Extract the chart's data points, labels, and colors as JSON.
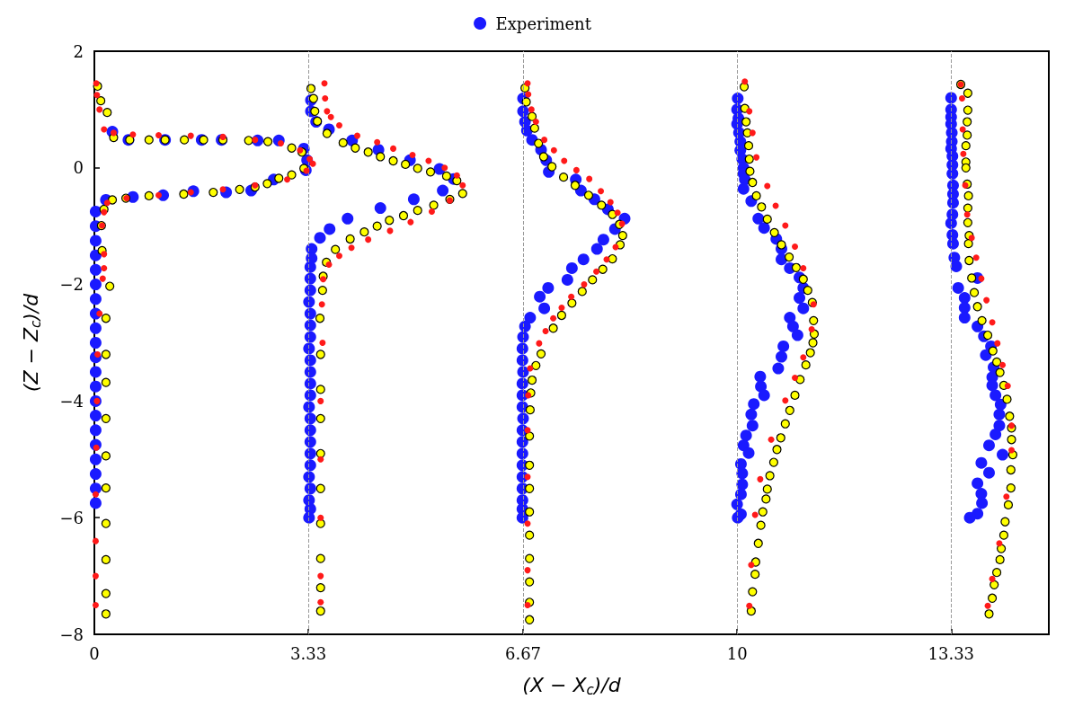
{
  "chart_data": {
    "type": "scatter",
    "xlabel": "(X − X$_{c}$)/d",
    "ylabel": "(Z − Z$_{c}$)/d",
    "xlim": [
      0,
      14.85
    ],
    "ylim": [
      -8,
      2
    ],
    "xticks": [
      0,
      3.33,
      6.67,
      10,
      13.33
    ],
    "yticks": [
      -8,
      -6,
      -4,
      -2,
      0,
      2
    ],
    "grid": false,
    "legend": "top",
    "marker": "circle",
    "ref_lines": [
      {
        "axis": "x",
        "value": 3.33,
        "color": "#999999",
        "line_style": "dashed"
      },
      {
        "axis": "x",
        "value": 6.67,
        "color": "#999999",
        "line_style": "dashed"
      },
      {
        "axis": "x",
        "value": 10,
        "color": "#999999",
        "line_style": "dashed"
      },
      {
        "axis": "x",
        "value": 13.33,
        "color": "#999999",
        "line_style": "dashed"
      }
    ],
    "series": [
      {
        "name": "Experiment",
        "color": "#1a1aff",
        "x": [
          0.28,
          0.53,
          1.1,
          1.67,
          1.98,
          2.54,
          2.87,
          3.26,
          3.31,
          3.29,
          2.79,
          2.44,
          2.05,
          1.54,
          1.07,
          0.6,
          0.18,
          0.02,
          0.02,
          0.02,
          0.02,
          0.02,
          0.02,
          0.02,
          0.02,
          0.02,
          0.02,
          0.02,
          0.02,
          0.02,
          0.02,
          0.02,
          0.02,
          0.02,
          0.02,
          0.02,
          0.02,
          0.02,
          3.37,
          3.37,
          3.45,
          3.65,
          4.01,
          4.42,
          4.91,
          5.37,
          5.59,
          5.42,
          4.97,
          4.45,
          3.94,
          3.66,
          3.51,
          3.38,
          3.38,
          3.36,
          3.36,
          3.36,
          3.34,
          3.36,
          3.36,
          3.36,
          3.34,
          3.36,
          3.36,
          3.36,
          3.36,
          3.34,
          3.36,
          3.36,
          3.36,
          3.36,
          3.36,
          3.34,
          3.36,
          3.34,
          3.36,
          3.34,
          6.67,
          6.67,
          6.7,
          6.73,
          6.81,
          6.95,
          7.03,
          7.07,
          7.49,
          7.57,
          7.78,
          7.99,
          8.25,
          8.1,
          7.92,
          7.82,
          7.61,
          7.43,
          7.36,
          7.06,
          6.93,
          7.0,
          6.78,
          6.7,
          6.67,
          6.66,
          6.66,
          6.67,
          6.66,
          6.66,
          6.66,
          6.67,
          6.66,
          6.66,
          6.66,
          6.66,
          6.66,
          6.66,
          6.66,
          6.66,
          6.66,
          10.01,
          10.0,
          10.02,
          10.0,
          10.03,
          10.05,
          10.05,
          10.08,
          10.1,
          10.1,
          10.12,
          10.1,
          10.22,
          10.33,
          10.42,
          10.61,
          10.69,
          10.69,
          10.82,
          10.97,
          11.03,
          10.97,
          11.03,
          10.82,
          10.87,
          10.94,
          10.72,
          10.69,
          10.64,
          10.36,
          10.37,
          10.42,
          10.26,
          10.22,
          10.24,
          10.14,
          10.1,
          10.18,
          10.06,
          10.08,
          10.08,
          10.06,
          10.0,
          10.06,
          10.01,
          13.33,
          13.33,
          13.33,
          13.33,
          13.34,
          13.34,
          13.33,
          13.35,
          13.35,
          13.35,
          13.36,
          13.36,
          13.36,
          13.35,
          13.33,
          13.35,
          13.36,
          13.38,
          13.41,
          13.74,
          13.44,
          13.54,
          13.54,
          13.54,
          13.74,
          13.84,
          13.95,
          13.87,
          13.99,
          13.97,
          13.97,
          14.02,
          14.1,
          14.08,
          14.08,
          14.02,
          13.92,
          14.13,
          13.8,
          13.92,
          13.74,
          13.8,
          13.81,
          13.74,
          13.62
        ],
        "values": [
          0.62,
          0.48,
          0.48,
          0.48,
          0.48,
          0.47,
          0.47,
          0.33,
          0.13,
          -0.04,
          -0.2,
          -0.39,
          -0.42,
          -0.4,
          -0.47,
          -0.5,
          -0.55,
          -0.75,
          -1.0,
          -1.25,
          -1.5,
          -1.75,
          -2.0,
          -2.25,
          -2.5,
          -2.75,
          -3.0,
          -3.25,
          -3.5,
          -3.75,
          -4.0,
          -4.25,
          -4.5,
          -4.75,
          -5.0,
          -5.25,
          -5.5,
          -5.75,
          1.16,
          0.97,
          0.79,
          0.66,
          0.47,
          0.31,
          0.13,
          -0.02,
          -0.19,
          -0.39,
          -0.54,
          -0.69,
          -0.87,
          -1.05,
          -1.2,
          -1.39,
          -1.55,
          -1.7,
          -1.9,
          -2.1,
          -2.3,
          -2.5,
          -2.7,
          -2.9,
          -3.1,
          -3.3,
          -3.5,
          -3.7,
          -3.9,
          -4.1,
          -4.3,
          -4.5,
          -4.7,
          -4.9,
          -5.1,
          -5.3,
          -5.5,
          -5.7,
          -5.85,
          -6.0,
          1.19,
          0.97,
          0.79,
          0.64,
          0.48,
          0.31,
          0.13,
          -0.07,
          -0.2,
          -0.39,
          -0.54,
          -0.71,
          -0.87,
          -1.05,
          -1.23,
          -1.39,
          -1.57,
          -1.72,
          -1.92,
          -2.06,
          -2.21,
          -2.41,
          -2.57,
          -2.72,
          -2.9,
          -3.1,
          -3.3,
          -3.5,
          -3.7,
          -3.9,
          -4.1,
          -4.3,
          -4.5,
          -4.7,
          -4.9,
          -5.1,
          -5.3,
          -5.5,
          -5.7,
          -5.85,
          -6.0,
          1.19,
          1.0,
          0.85,
          0.75,
          0.6,
          0.45,
          0.3,
          0.15,
          0.0,
          -0.1,
          -0.2,
          -0.36,
          -0.57,
          -0.87,
          -1.03,
          -1.22,
          -1.39,
          -1.57,
          -1.72,
          -1.88,
          -2.06,
          -2.23,
          -2.41,
          -2.57,
          -2.72,
          -2.87,
          -3.06,
          -3.24,
          -3.44,
          -3.58,
          -3.75,
          -3.9,
          -4.05,
          -4.23,
          -4.42,
          -4.59,
          -4.76,
          -4.89,
          -5.08,
          -5.24,
          -5.43,
          -5.6,
          -5.77,
          -5.94,
          -6.0,
          1.2,
          1.0,
          0.87,
          0.75,
          0.6,
          0.45,
          0.33,
          0.2,
          0.05,
          -0.1,
          -0.3,
          -0.45,
          -0.6,
          -0.8,
          -0.95,
          -1.15,
          -1.3,
          -1.54,
          -1.69,
          -1.89,
          -2.06,
          -2.23,
          -2.4,
          -2.57,
          -2.72,
          -2.89,
          -3.06,
          -3.21,
          -3.42,
          -3.59,
          -3.73,
          -3.9,
          -4.06,
          -4.23,
          -4.42,
          -4.57,
          -4.76,
          -4.92,
          -5.06,
          -5.23,
          -5.41,
          -5.59,
          -5.75,
          -5.93,
          -6.0
        ]
      },
      {
        "color": "#ffff00",
        "x": [
          0.05,
          0.1,
          0.2,
          0.3,
          0.55,
          0.85,
          1.1,
          1.4,
          1.7,
          2.0,
          2.4,
          2.7,
          3.07,
          3.23,
          3.26,
          3.07,
          2.87,
          2.69,
          2.5,
          2.26,
          1.85,
          1.39,
          0.85,
          0.49,
          0.28,
          0.15,
          0.11,
          0.12,
          0.24,
          0.18,
          0.18,
          0.18,
          0.18,
          0.18,
          0.18,
          0.18,
          0.18,
          0.18,
          0.18,
          3.37,
          3.41,
          3.43,
          3.47,
          3.62,
          3.87,
          4.06,
          4.26,
          4.45,
          4.65,
          4.84,
          5.03,
          5.23,
          5.48,
          5.64,
          5.73,
          5.53,
          5.28,
          5.03,
          4.81,
          4.59,
          4.4,
          4.2,
          3.98,
          3.75,
          3.61,
          3.56,
          3.55,
          3.51,
          3.52,
          3.52,
          3.52,
          3.52,
          3.52,
          3.52,
          3.52,
          3.52,
          3.52,
          6.7,
          6.72,
          6.81,
          6.85,
          6.91,
          6.99,
          7.12,
          7.3,
          7.48,
          7.69,
          7.89,
          8.06,
          8.17,
          8.22,
          8.18,
          8.06,
          7.91,
          7.75,
          7.59,
          7.43,
          7.27,
          7.14,
          6.95,
          6.87,
          6.81,
          6.79,
          6.78,
          6.77,
          6.77,
          6.77,
          6.77,
          6.77,
          6.77,
          6.77,
          6.77,
          6.77,
          10.11,
          10.12,
          10.14,
          10.16,
          10.18,
          10.19,
          10.2,
          10.24,
          10.3,
          10.38,
          10.47,
          10.58,
          10.69,
          10.81,
          10.92,
          11.03,
          11.1,
          11.17,
          11.19,
          11.2,
          11.18,
          11.14,
          11.07,
          10.98,
          10.9,
          10.82,
          10.75,
          10.68,
          10.62,
          10.57,
          10.51,
          10.47,
          10.45,
          10.4,
          10.37,
          10.33,
          10.29,
          10.28,
          10.24,
          10.22,
          13.48,
          13.59,
          13.59,
          13.58,
          13.58,
          13.56,
          13.56,
          13.56,
          13.58,
          13.6,
          13.59,
          13.59,
          13.61,
          13.6,
          13.61,
          13.65,
          13.69,
          13.74,
          13.81,
          13.9,
          13.98,
          14.04,
          14.09,
          14.15,
          14.2,
          14.24,
          14.27,
          14.27,
          14.29,
          14.26,
          14.26,
          14.22,
          14.17,
          14.15,
          14.11,
          14.09,
          14.04,
          14.0,
          13.97,
          13.92
        ],
        "values": [
          1.4,
          1.15,
          0.95,
          0.52,
          0.48,
          0.48,
          0.48,
          0.48,
          0.48,
          0.48,
          0.47,
          0.45,
          0.34,
          0.27,
          -0.01,
          -0.12,
          -0.18,
          -0.27,
          -0.33,
          -0.37,
          -0.42,
          -0.45,
          -0.48,
          -0.52,
          -0.55,
          -0.71,
          -0.99,
          -1.42,
          -2.03,
          -2.58,
          -3.2,
          -3.68,
          -4.3,
          -4.94,
          -5.49,
          -6.1,
          -6.72,
          -7.3,
          -7.65,
          1.36,
          1.19,
          0.97,
          0.8,
          0.59,
          0.43,
          0.34,
          0.27,
          0.19,
          0.12,
          0.06,
          -0.01,
          -0.07,
          -0.14,
          -0.22,
          -0.44,
          -0.54,
          -0.64,
          -0.73,
          -0.82,
          -0.9,
          -1.0,
          -1.1,
          -1.22,
          -1.4,
          -1.62,
          -1.86,
          -2.1,
          -2.58,
          -3.2,
          -3.8,
          -4.3,
          -4.9,
          -5.5,
          -6.1,
          -6.7,
          -7.2,
          -7.6,
          1.37,
          1.13,
          0.88,
          0.68,
          0.42,
          0.19,
          0.02,
          -0.16,
          -0.3,
          -0.47,
          -0.64,
          -0.8,
          -0.97,
          -1.16,
          -1.32,
          -1.56,
          -1.74,
          -1.92,
          -2.12,
          -2.32,
          -2.53,
          -2.75,
          -3.19,
          -3.39,
          -3.64,
          -3.86,
          -4.15,
          -4.6,
          -5.1,
          -5.5,
          -5.9,
          -6.3,
          -6.7,
          -7.1,
          -7.45,
          -7.75,
          1.39,
          1.02,
          0.79,
          0.6,
          0.38,
          0.15,
          -0.06,
          -0.25,
          -0.48,
          -0.67,
          -0.88,
          -1.11,
          -1.32,
          -1.53,
          -1.71,
          -1.91,
          -2.1,
          -2.31,
          -2.62,
          -2.85,
          -3.0,
          -3.17,
          -3.38,
          -3.63,
          -3.9,
          -4.16,
          -4.39,
          -4.63,
          -4.83,
          -5.05,
          -5.28,
          -5.51,
          -5.68,
          -5.9,
          -6.13,
          -6.44,
          -6.76,
          -6.97,
          -7.27,
          -7.6,
          1.43,
          1.28,
          0.99,
          0.79,
          0.56,
          0.38,
          0.1,
          0.0,
          -0.28,
          -0.48,
          -0.69,
          -0.94,
          -1.16,
          -1.3,
          -1.59,
          -1.89,
          -2.14,
          -2.38,
          -2.62,
          -2.87,
          -3.14,
          -3.33,
          -3.51,
          -3.73,
          -3.97,
          -4.26,
          -4.46,
          -4.66,
          -4.92,
          -5.18,
          -5.49,
          -5.78,
          -6.07,
          -6.3,
          -6.53,
          -6.72,
          -6.94,
          -7.15,
          -7.38,
          -7.65
        ]
      },
      {
        "color": "#ff1a1a",
        "x": [
          0.03,
          0.04,
          0.08,
          0.15,
          0.3,
          0.6,
          1.0,
          1.5,
          2.0,
          2.5,
          2.9,
          3.2,
          3.35,
          3.4,
          3.3,
          3.0,
          2.5,
          2.0,
          1.5,
          1.0,
          0.5,
          0.2,
          0.15,
          0.12,
          0.15,
          0.15,
          0.13,
          0.08,
          0.05,
          0.04,
          0.03,
          0.02,
          0.02,
          0.02,
          0.02,
          3.58,
          3.59,
          3.62,
          3.68,
          3.81,
          4.09,
          4.4,
          4.65,
          4.95,
          5.2,
          5.45,
          5.64,
          5.73,
          5.53,
          5.25,
          4.92,
          4.6,
          4.26,
          4.0,
          3.81,
          3.65,
          3.56,
          3.54,
          3.55,
          3.52,
          3.52,
          3.52,
          3.52,
          3.52,
          6.74,
          6.75,
          6.8,
          6.87,
          7.0,
          7.15,
          7.31,
          7.5,
          7.7,
          7.88,
          8.03,
          8.14,
          8.21,
          8.11,
          7.97,
          7.81,
          7.62,
          7.42,
          7.27,
          7.14,
          7.02,
          6.92,
          6.78,
          6.75,
          6.74,
          6.74,
          6.74,
          6.74,
          6.74,
          10.12,
          10.19,
          10.24,
          10.3,
          10.47,
          10.6,
          10.75,
          10.9,
          11.03,
          11.19,
          11.16,
          11.03,
          10.9,
          10.75,
          10.53,
          10.36,
          10.28,
          10.22,
          10.19,
          13.48,
          13.5,
          13.51,
          13.52,
          13.55,
          13.58,
          13.65,
          13.72,
          13.8,
          13.88,
          13.97,
          14.05,
          14.13,
          14.21,
          14.27,
          14.27,
          14.19,
          14.08,
          13.97,
          13.9
        ],
        "values": [
          1.45,
          1.25,
          1.0,
          0.66,
          0.6,
          0.57,
          0.56,
          0.55,
          0.53,
          0.48,
          0.42,
          0.3,
          0.15,
          0.07,
          -0.05,
          -0.2,
          -0.3,
          -0.37,
          -0.42,
          -0.47,
          -0.52,
          -0.6,
          -0.76,
          -0.99,
          -1.48,
          -1.72,
          -1.9,
          -2.5,
          -3.2,
          -4.0,
          -4.8,
          -5.6,
          -6.4,
          -7.0,
          -7.5,
          1.45,
          1.19,
          0.97,
          0.87,
          0.73,
          0.55,
          0.44,
          0.33,
          0.22,
          0.12,
          0.0,
          -0.13,
          -0.3,
          -0.56,
          -0.75,
          -0.93,
          -1.08,
          -1.23,
          -1.37,
          -1.51,
          -1.66,
          -1.91,
          -2.34,
          -3.0,
          -4.0,
          -5.0,
          -6.0,
          -7.0,
          -7.45,
          1.45,
          1.26,
          1.0,
          0.79,
          0.48,
          0.3,
          0.12,
          -0.04,
          -0.19,
          -0.4,
          -0.59,
          -0.77,
          -0.96,
          -1.36,
          -1.57,
          -1.78,
          -2.0,
          -2.21,
          -2.4,
          -2.58,
          -2.8,
          -3.01,
          -3.44,
          -3.9,
          -4.5,
          -5.3,
          -6.1,
          -6.9,
          -7.5,
          1.48,
          0.97,
          0.6,
          0.18,
          -0.31,
          -0.65,
          -0.99,
          -1.35,
          -1.72,
          -2.34,
          -2.77,
          -3.25,
          -3.6,
          -3.99,
          -4.66,
          -5.34,
          -5.95,
          -6.81,
          -7.51,
          1.43,
          1.19,
          0.66,
          0.24,
          -0.3,
          -0.8,
          -1.2,
          -1.54,
          -1.9,
          -2.27,
          -2.65,
          -3.01,
          -3.38,
          -3.74,
          -4.42,
          -4.84,
          -5.64,
          -6.44,
          -7.05,
          -7.51
        ]
      }
    ]
  }
}
